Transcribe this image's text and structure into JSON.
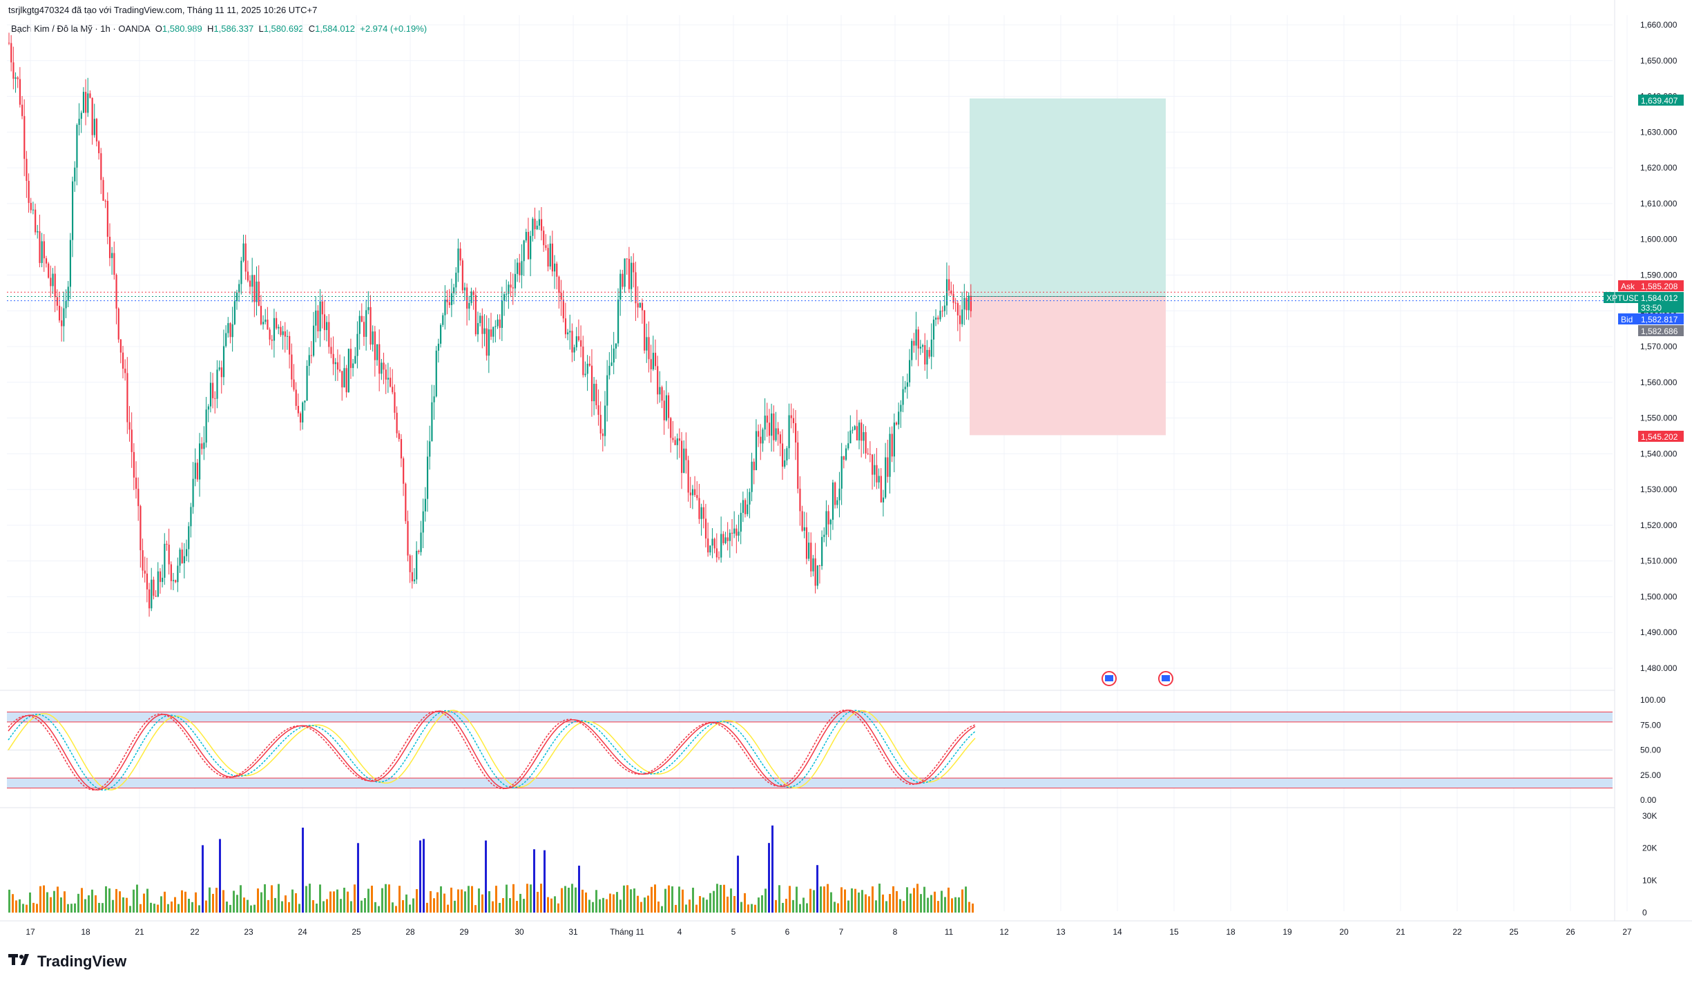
{
  "header": {
    "publisher_line": "tsrjlkgtg470324 đã tạo với TradingView.com, Tháng 11 11, 2025 10:26 UTC+7"
  },
  "symbol": {
    "name": "Bạch Kim / Đô la Mỹ · 1h · OANDA",
    "open_label": "O",
    "open": "1,580.989",
    "high_label": "H",
    "high": "1,586.337",
    "low_label": "L",
    "low": "1,580.692",
    "close_label": "C",
    "close": "1,584.012",
    "change": "+2.974 (+0.19%)"
  },
  "colors": {
    "up": "#089981",
    "down": "#f23645",
    "grid": "#f0f3fa",
    "profit_zone": "#cdebe6",
    "loss_zone": "#fad6d9",
    "stoch_k": "#f23645",
    "stoch_d": "#00bcd4",
    "stoch_slow": "#ffeb3b",
    "volume_up": "#4caf50",
    "volume_down": "#f57c00",
    "volume_spike": "#1e1ed6"
  },
  "price_axis": {
    "ticks": [
      "1,660.000",
      "1,650.000",
      "1,640.000",
      "1,630.000",
      "1,620.000",
      "1,610.000",
      "1,600.000",
      "1,590.000",
      "1,580.000",
      "1,570.000",
      "1,560.000",
      "1,550.000",
      "1,540.000",
      "1,530.000",
      "1,520.000",
      "1,510.000",
      "1,500.000",
      "1,490.000",
      "1,480.000"
    ],
    "tags": [
      {
        "label": "",
        "value": "1,639.407",
        "color": "#089981"
      },
      {
        "label": "Ask",
        "value": "1,585.208",
        "color": "#f23645"
      },
      {
        "label": "XPTUSD",
        "value": "1,584.012",
        "color": "#089981"
      },
      {
        "label": "",
        "value": "33:50",
        "color": "#089981"
      },
      {
        "label": "Bid",
        "value": "1,582.817",
        "color": "#2962ff"
      },
      {
        "label": "",
        "value": "1,582.686",
        "color": "#787b86"
      },
      {
        "label": "",
        "value": "1,545.202",
        "color": "#f23645"
      }
    ]
  },
  "stoch_axis": {
    "ticks": [
      "100.00",
      "75.00",
      "50.00",
      "25.00",
      "0.00"
    ]
  },
  "volume_axis": {
    "ticks": [
      "30K",
      "20K",
      "10K",
      "0"
    ]
  },
  "time_axis": {
    "labels": [
      "17",
      "18",
      "21",
      "22",
      "23",
      "24",
      "25",
      "28",
      "29",
      "30",
      "31",
      "Tháng 11",
      "4",
      "5",
      "6",
      "7",
      "8",
      "11",
      "12",
      "13",
      "14",
      "15",
      "18",
      "19",
      "20",
      "21",
      "22",
      "25",
      "26",
      "27"
    ]
  },
  "chart_data": {
    "type": "candlestick",
    "interval": "1h",
    "ylim": [
      1475,
      1662
    ],
    "key_levels": {
      "take_profit": 1639.407,
      "entry": 1584.012,
      "stop_loss": 1545.202,
      "ask": 1585.208,
      "bid": 1582.817
    },
    "close_path": [
      [
        0,
        1655
      ],
      [
        1,
        1640
      ],
      [
        2,
        1605
      ],
      [
        3,
        1595
      ],
      [
        4,
        1585
      ],
      [
        5,
        1575
      ],
      [
        6,
        1632
      ],
      [
        7,
        1640
      ],
      [
        8,
        1625
      ],
      [
        9,
        1600
      ],
      [
        10,
        1570
      ],
      [
        11,
        1540
      ],
      [
        12,
        1505
      ],
      [
        13,
        1498
      ],
      [
        14,
        1512
      ],
      [
        15,
        1505
      ],
      [
        16,
        1520
      ],
      [
        17,
        1540
      ],
      [
        18,
        1555
      ],
      [
        19,
        1565
      ],
      [
        20,
        1578
      ],
      [
        21,
        1598
      ],
      [
        22,
        1585
      ],
      [
        23,
        1572
      ],
      [
        24,
        1580
      ],
      [
        25,
        1570
      ],
      [
        26,
        1545
      ],
      [
        27,
        1572
      ],
      [
        28,
        1580
      ],
      [
        29,
        1570
      ],
      [
        30,
        1560
      ],
      [
        31,
        1572
      ],
      [
        32,
        1578
      ],
      [
        33,
        1565
      ],
      [
        34,
        1558
      ],
      [
        35,
        1545
      ],
      [
        36,
        1500
      ],
      [
        37,
        1520
      ],
      [
        38,
        1560
      ],
      [
        39,
        1580
      ],
      [
        40,
        1595
      ],
      [
        41,
        1585
      ],
      [
        42,
        1575
      ],
      [
        43,
        1570
      ],
      [
        44,
        1580
      ],
      [
        45,
        1590
      ],
      [
        46,
        1595
      ],
      [
        47,
        1605
      ],
      [
        48,
        1600
      ],
      [
        49,
        1585
      ],
      [
        50,
        1575
      ],
      [
        51,
        1570
      ],
      [
        52,
        1560
      ],
      [
        53,
        1548
      ],
      [
        54,
        1568
      ],
      [
        55,
        1595
      ],
      [
        56,
        1585
      ],
      [
        57,
        1570
      ],
      [
        58,
        1560
      ],
      [
        59,
        1550
      ],
      [
        60,
        1540
      ],
      [
        61,
        1530
      ],
      [
        62,
        1520
      ],
      [
        63,
        1512
      ],
      [
        64,
        1520
      ],
      [
        65,
        1515
      ],
      [
        66,
        1530
      ],
      [
        67,
        1545
      ],
      [
        68,
        1550
      ],
      [
        69,
        1540
      ],
      [
        70,
        1548
      ],
      [
        71,
        1520
      ],
      [
        72,
        1505
      ],
      [
        73,
        1522
      ],
      [
        74,
        1530
      ],
      [
        75,
        1540
      ],
      [
        76,
        1548
      ],
      [
        77,
        1538
      ],
      [
        78,
        1530
      ],
      [
        79,
        1545
      ],
      [
        80,
        1560
      ],
      [
        81,
        1572
      ],
      [
        82,
        1568
      ],
      [
        83,
        1578
      ],
      [
        84,
        1585
      ],
      [
        85,
        1580
      ],
      [
        86,
        1584
      ]
    ],
    "stochastic": {
      "levels": [
        100,
        80,
        20,
        0
      ],
      "last": 78
    },
    "volume": {
      "max": 30000
    }
  }
}
